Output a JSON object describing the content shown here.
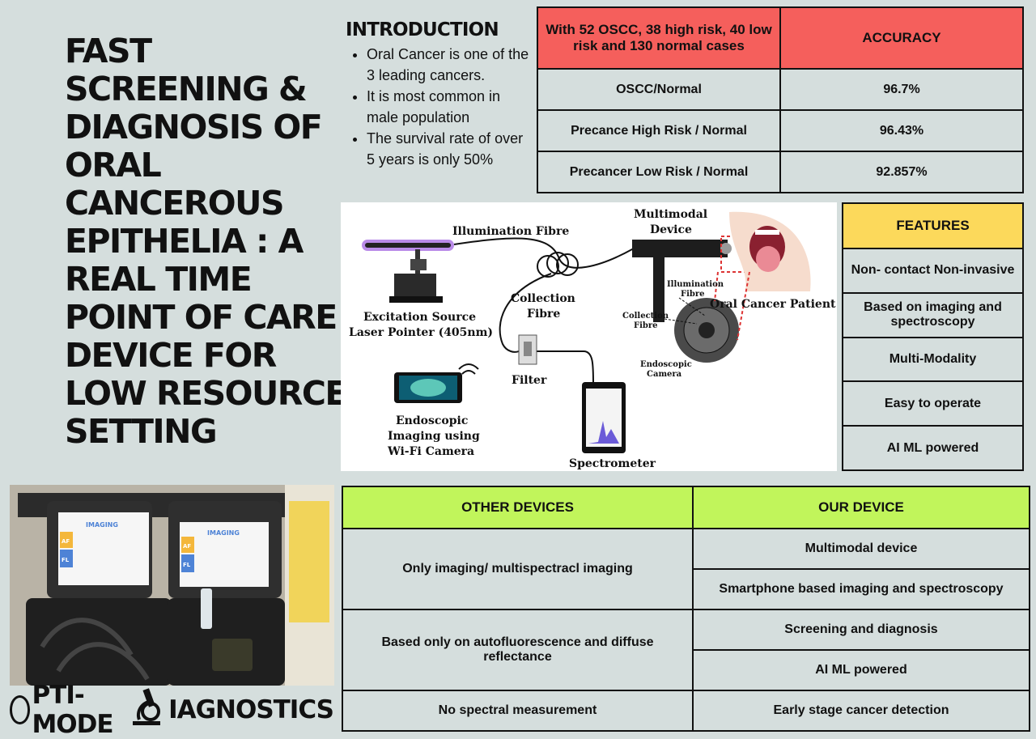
{
  "title_lines": [
    "FAST",
    "SCREENING &",
    "DIAGNOSIS OF",
    "ORAL",
    "CANCEROUS",
    "EPITHELIA : A",
    "REAL TIME",
    "POINT OF CARE",
    "DEVICE FOR",
    "LOW RESOURCE",
    "SETTING"
  ],
  "introduction": {
    "heading": "INTRODUCTION",
    "bullets": [
      "Oral Cancer is one of the 3 leading cancers.",
      "It is most common in male population",
      "The survival rate of over 5 years is only 50%"
    ]
  },
  "accuracy_table": {
    "header_left": "With 52 OSCC, 38 high risk, 40 low risk and 130 normal cases",
    "header_right": "ACCURACY",
    "rows": [
      {
        "label": "OSCC/Normal",
        "value": "96.7%"
      },
      {
        "label": "Precance High Risk / Normal",
        "value": "96.43%"
      },
      {
        "label": "Precancer Low Risk / Normal",
        "value": "92.857%"
      }
    ]
  },
  "diagram": {
    "illumination_fibre": "Illumination Fibre",
    "multimodal_device": [
      "Multimodal",
      "Device"
    ],
    "collection_fibre": [
      "Collection",
      "Fibre"
    ],
    "excitation_source": [
      "Excitation Source",
      "Laser Pointer (405nm)"
    ],
    "filter": "Filter",
    "endoscopic_imaging": [
      "Endoscopic",
      "Imaging using",
      "Wi-Fi Camera"
    ],
    "spectrometer": "Spectrometer",
    "oral_cancer_patient": "Oral Cancer Patient",
    "illumination_fibre_small": [
      "Illumination",
      "Fibre"
    ],
    "collection_fibre_small": [
      "Collection",
      "Fibre"
    ],
    "endoscopic_camera": [
      "Endoscopic",
      "Camera"
    ]
  },
  "features": {
    "heading": "FEATURES",
    "items": [
      "Non- contact Non-invasive",
      "Based on imaging and spectroscopy",
      "Multi-Modality",
      "Easy to operate",
      "AI ML powered"
    ]
  },
  "comparison": {
    "header_left": "OTHER DEVICES",
    "header_right": "OUR DEVICE",
    "other": [
      "Only imaging/ multispectracl imaging",
      "Based only on autofluorescence and diffuse reflectance",
      "No spectral measurement"
    ],
    "ours": [
      "Multimodal device",
      "Smartphone based imaging and spectroscopy",
      "Screening and diagnosis",
      "AI ML powered",
      "Early stage cancer detection"
    ]
  },
  "photo": {
    "sign_left": "IMAGING",
    "sign_right": "IMAGING",
    "tag_af": "AF",
    "tag_fl": "FL"
  },
  "logo": {
    "part1": "PTI-MODE",
    "part2": "IAGNOSTICS"
  }
}
